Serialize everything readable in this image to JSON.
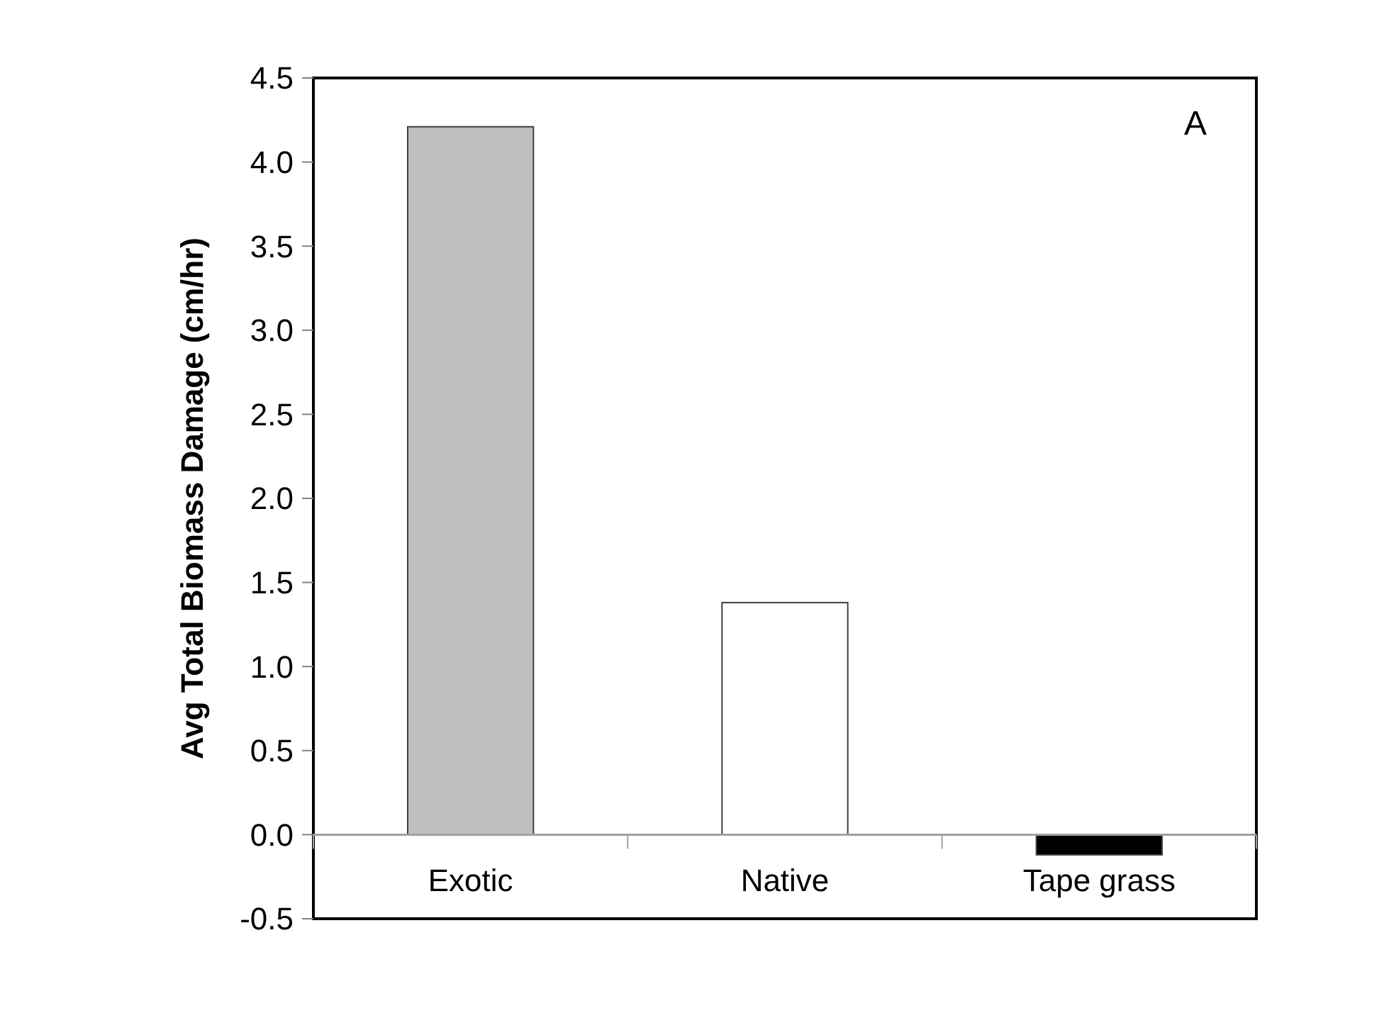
{
  "chart_data": {
    "type": "bar",
    "ylabel": "Avg Total Biomass Damage (cm/hr)",
    "categories": [
      "Exotic",
      "Native",
      "Tape grass"
    ],
    "values": [
      4.21,
      1.38,
      -0.12
    ],
    "colors": [
      "#bfbfbf",
      "#ffffff",
      "#000000"
    ],
    "ylim": [
      -0.5,
      4.5
    ],
    "yticks": [
      {
        "value": -0.5,
        "label": "-0.5"
      },
      {
        "value": 0,
        "label": "0.0"
      },
      {
        "value": 0.5,
        "label": "0.5"
      },
      {
        "value": 1,
        "label": "1.0"
      },
      {
        "value": 1.5,
        "label": "1.5"
      },
      {
        "value": 2,
        "label": "2.0"
      },
      {
        "value": 2.5,
        "label": "2.5"
      },
      {
        "value": 3,
        "label": "3.0"
      },
      {
        "value": 3.5,
        "label": "3.5"
      },
      {
        "value": 4,
        "label": "4.0"
      },
      {
        "value": 4.5,
        "label": "4.5"
      }
    ],
    "annotations": [
      "A"
    ]
  }
}
